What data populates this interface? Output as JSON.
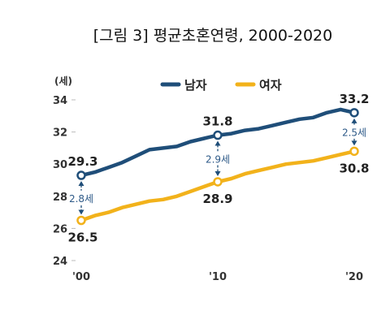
{
  "chart_data": {
    "type": "line",
    "title": "[그림 3] 평균초혼연령, 2000-2020",
    "ylabel": "(세)",
    "xlabel": "",
    "ylim": [
      24,
      34
    ],
    "yticks": [
      24,
      26,
      28,
      30,
      32,
      34
    ],
    "x": [
      2000,
      2001,
      2002,
      2003,
      2004,
      2005,
      2006,
      2007,
      2008,
      2009,
      2010,
      2011,
      2012,
      2013,
      2014,
      2015,
      2016,
      2017,
      2018,
      2019,
      2020
    ],
    "xticks": [
      {
        "x": 2000,
        "label": "'00"
      },
      {
        "x": 2010,
        "label": "'10"
      },
      {
        "x": 2020,
        "label": "'20"
      }
    ],
    "grid": false,
    "legend_position": "top-center",
    "series": [
      {
        "name": "남자",
        "color": "#1F4E79",
        "values": [
          29.3,
          29.5,
          29.8,
          30.1,
          30.5,
          30.9,
          31.0,
          31.1,
          31.4,
          31.6,
          31.8,
          31.9,
          32.1,
          32.2,
          32.4,
          32.6,
          32.8,
          32.9,
          33.2,
          33.4,
          33.2
        ]
      },
      {
        "name": "여자",
        "color": "#F2B21B",
        "values": [
          26.5,
          26.8,
          27.0,
          27.3,
          27.5,
          27.7,
          27.8,
          28.0,
          28.3,
          28.6,
          28.9,
          29.1,
          29.4,
          29.6,
          29.8,
          30.0,
          30.1,
          30.2,
          30.4,
          30.6,
          30.8
        ]
      }
    ],
    "point_labels": [
      {
        "series": 0,
        "x": 2000,
        "text": "29.3"
      },
      {
        "series": 0,
        "x": 2010,
        "text": "31.8"
      },
      {
        "series": 0,
        "x": 2020,
        "text": "33.2"
      },
      {
        "series": 1,
        "x": 2000,
        "text": "26.5"
      },
      {
        "series": 1,
        "x": 2010,
        "text": "28.9"
      },
      {
        "series": 1,
        "x": 2020,
        "text": "30.8"
      }
    ],
    "gap_annotations": [
      {
        "x": 2000,
        "text": "2.8세"
      },
      {
        "x": 2010,
        "text": "2.9세"
      },
      {
        "x": 2020,
        "text": "2.5세"
      }
    ]
  }
}
